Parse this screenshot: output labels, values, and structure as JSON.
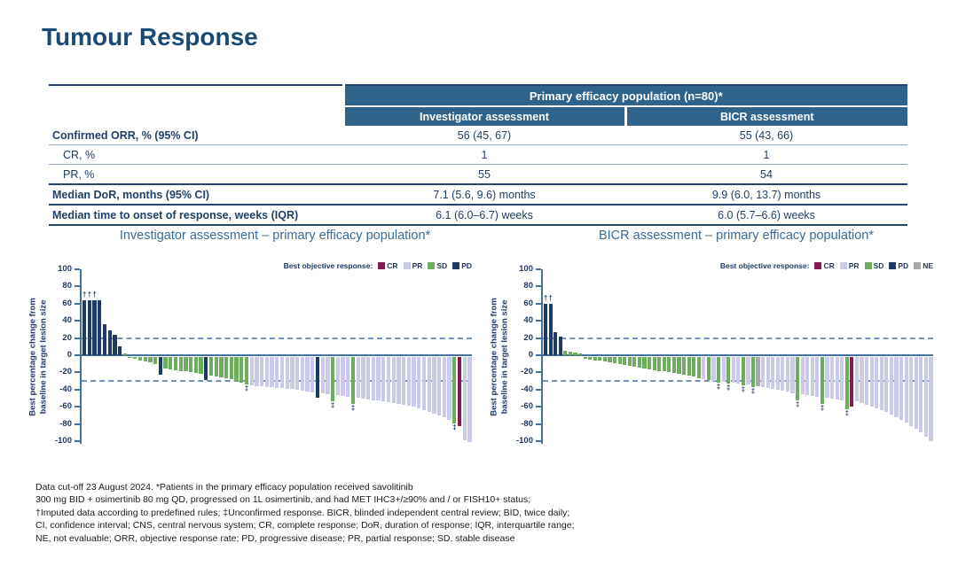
{
  "title": "Tumour Response",
  "table": {
    "col_group_header": "Primary efficacy population (n=80)*",
    "col_headers": [
      "Investigator assessment",
      "BICR assessment"
    ],
    "rows": [
      {
        "label": "Confirmed ORR, % (95% CI)",
        "values": [
          "56 (45, 67)",
          "55 (43, 66)"
        ]
      },
      {
        "label": "CR, %",
        "values": [
          "1",
          "1"
        ]
      },
      {
        "label": "PR, %",
        "values": [
          "55",
          "54"
        ]
      },
      {
        "label": "Median DoR, months (95% CI)",
        "values": [
          "7.1 (5.6, 9.6) months",
          "9.9 (6.0, 13.7) months"
        ]
      },
      {
        "label": "Median time to onset of response, weeks (IQR)",
        "values": [
          "6.1 (6.0–6.7) weeks",
          "6.0 (5.7–6.6) weeks"
        ]
      }
    ]
  },
  "chart_data": [
    {
      "type": "bar",
      "title": "Investigator assessment – primary efficacy population*",
      "ylabel": "Best percentage change from baseline in target lesion size",
      "ylabel_lines": [
        "Best percentage change from",
        "baseline in target lesion size"
      ],
      "ylim": [
        -100,
        100
      ],
      "yticks": [
        100,
        80,
        60,
        40,
        20,
        0,
        -20,
        -40,
        -60,
        -80,
        -100
      ],
      "reference_lines": [
        20,
        -30
      ],
      "legend_title": "Best objective response:",
      "legend_position": "top-right",
      "grid": false,
      "legend": [
        {
          "label": "CR",
          "color": "#871a52"
        },
        {
          "label": "PR",
          "color": "#c9cbe8"
        },
        {
          "label": "SD",
          "color": "#6fad5e"
        },
        {
          "label": "PD",
          "color": "#1f3a64"
        }
      ],
      "marker_meanings": {
        "†": "Imputed data according to predefined rules",
        "‡": "Unconfirmed response"
      },
      "bars": [
        [
          64,
          "PD",
          "†"
        ],
        [
          64,
          "PD",
          "†"
        ],
        [
          64,
          "PD",
          "†"
        ],
        [
          64,
          "PD"
        ],
        [
          36,
          "PD"
        ],
        [
          29,
          "PD"
        ],
        [
          24,
          "PD"
        ],
        [
          10,
          "PD"
        ],
        [
          2,
          "SD"
        ],
        [
          -1,
          "SD"
        ],
        [
          -2,
          "SD"
        ],
        [
          -4,
          "SD"
        ],
        [
          -5,
          "SD"
        ],
        [
          -6,
          "SD"
        ],
        [
          -8,
          "SD"
        ],
        [
          -21,
          "PD"
        ],
        [
          -13,
          "SD"
        ],
        [
          -14,
          "SD"
        ],
        [
          -15,
          "SD"
        ],
        [
          -16,
          "SD"
        ],
        [
          -17,
          "SD"
        ],
        [
          -18,
          "SD"
        ],
        [
          -19,
          "SD"
        ],
        [
          -20,
          "SD"
        ],
        [
          -27,
          "PD"
        ],
        [
          -22,
          "SD"
        ],
        [
          -23,
          "SD"
        ],
        [
          -24,
          "SD"
        ],
        [
          -25,
          "SD"
        ],
        [
          -26,
          "SD"
        ],
        [
          -28,
          "SD"
        ],
        [
          -30,
          "SD"
        ],
        [
          -32,
          "SD",
          "‡"
        ],
        [
          -33,
          "PR"
        ],
        [
          -34,
          "PR"
        ],
        [
          -34,
          "PR"
        ],
        [
          -35,
          "PR"
        ],
        [
          -35,
          "PR"
        ],
        [
          -36,
          "PR"
        ],
        [
          -36,
          "PR"
        ],
        [
          -37,
          "PR"
        ],
        [
          -37,
          "PR"
        ],
        [
          -38,
          "PR"
        ],
        [
          -39,
          "PR"
        ],
        [
          -40,
          "PR"
        ],
        [
          -41,
          "PR"
        ],
        [
          -47,
          "PD"
        ],
        [
          -42,
          "PR"
        ],
        [
          -43,
          "PR"
        ],
        [
          -52,
          "SD",
          "‡"
        ],
        [
          -44,
          "PR"
        ],
        [
          -45,
          "PR"
        ],
        [
          -46,
          "PR"
        ],
        [
          -55,
          "SD",
          "‡"
        ],
        [
          -47,
          "PR"
        ],
        [
          -48,
          "PR"
        ],
        [
          -49,
          "PR"
        ],
        [
          -50,
          "PR"
        ],
        [
          -51,
          "PR"
        ],
        [
          -52,
          "PR"
        ],
        [
          -53,
          "PR"
        ],
        [
          -54,
          "PR"
        ],
        [
          -55,
          "PR"
        ],
        [
          -56,
          "PR"
        ],
        [
          -57,
          "PR"
        ],
        [
          -58,
          "PR"
        ],
        [
          -60,
          "PR"
        ],
        [
          -62,
          "PR"
        ],
        [
          -64,
          "PR"
        ],
        [
          -66,
          "PR"
        ],
        [
          -68,
          "PR"
        ],
        [
          -70,
          "PR"
        ],
        [
          -73,
          "PR"
        ],
        [
          -77,
          "SD",
          "‡"
        ],
        [
          -80,
          "CR"
        ],
        [
          -97,
          "PR"
        ],
        [
          -99,
          "PR"
        ]
      ]
    },
    {
      "type": "bar",
      "title": "BICR assessment – primary efficacy population*",
      "ylabel": "Best percentage change from baseline in target lesion size",
      "ylabel_lines": [
        "Best percentage change from",
        "baseline in target lesion size"
      ],
      "ylim": [
        -100,
        100
      ],
      "yticks": [
        100,
        80,
        60,
        40,
        20,
        0,
        -20,
        -40,
        -60,
        -80,
        -100
      ],
      "reference_lines": [
        20,
        -30
      ],
      "legend_title": "Best objective response:",
      "legend_position": "top-right",
      "grid": false,
      "legend": [
        {
          "label": "CR",
          "color": "#871a52"
        },
        {
          "label": "PR",
          "color": "#c9cbe8"
        },
        {
          "label": "SD",
          "color": "#6fad5e"
        },
        {
          "label": "PD",
          "color": "#1f3a64"
        },
        {
          "label": "NE",
          "color": "#a8a8a8"
        }
      ],
      "marker_meanings": {
        "†": "Imputed data according to predefined rules",
        "‡": "Unconfirmed response"
      },
      "bars": [
        [
          60,
          "PD",
          "†"
        ],
        [
          60,
          "PD",
          "†"
        ],
        [
          27,
          "PD"
        ],
        [
          22,
          "PD"
        ],
        [
          5,
          "SD"
        ],
        [
          4,
          "SD"
        ],
        [
          3,
          "SD"
        ],
        [
          2,
          "SD"
        ],
        [
          -2,
          "SD"
        ],
        [
          -3,
          "SD"
        ],
        [
          -4,
          "SD"
        ],
        [
          -4,
          "SD"
        ],
        [
          -5,
          "SD"
        ],
        [
          -6,
          "SD"
        ],
        [
          -7,
          "SD"
        ],
        [
          -8,
          "SD"
        ],
        [
          -9,
          "SD"
        ],
        [
          -10,
          "SD"
        ],
        [
          -11,
          "SD"
        ],
        [
          -12,
          "SD"
        ],
        [
          -13,
          "SD"
        ],
        [
          -14,
          "SD"
        ],
        [
          -15,
          "SD"
        ],
        [
          -16,
          "SD"
        ],
        [
          -17,
          "SD"
        ],
        [
          -18,
          "SD"
        ],
        [
          -19,
          "SD"
        ],
        [
          -20,
          "SD"
        ],
        [
          -21,
          "SD"
        ],
        [
          -22,
          "SD"
        ],
        [
          -23,
          "SD"
        ],
        [
          -25,
          "SD"
        ],
        [
          -26,
          "PR"
        ],
        [
          -27,
          "SD"
        ],
        [
          -28,
          "PR"
        ],
        [
          -30,
          "SD",
          "‡"
        ],
        [
          -29,
          "PR"
        ],
        [
          -31,
          "SD",
          "‡"
        ],
        [
          -30,
          "PR"
        ],
        [
          -31,
          "PR"
        ],
        [
          -33,
          "SD",
          "‡"
        ],
        [
          -32,
          "PR"
        ],
        [
          -35,
          "SD",
          "‡"
        ],
        [
          -34,
          "NE"
        ],
        [
          -35,
          "PR"
        ],
        [
          -36,
          "PR"
        ],
        [
          -37,
          "PR"
        ],
        [
          -38,
          "PR"
        ],
        [
          -39,
          "PR"
        ],
        [
          -40,
          "PR"
        ],
        [
          -42,
          "PR"
        ],
        [
          -50,
          "SD",
          "‡"
        ],
        [
          -43,
          "PR"
        ],
        [
          -44,
          "PR"
        ],
        [
          -45,
          "PR"
        ],
        [
          -46,
          "PR"
        ],
        [
          -55,
          "SD",
          "‡"
        ],
        [
          -47,
          "PR"
        ],
        [
          -48,
          "PR"
        ],
        [
          -49,
          "PR"
        ],
        [
          -50,
          "PR"
        ],
        [
          -61,
          "SD",
          "‡"
        ],
        [
          -58,
          "CR"
        ],
        [
          -52,
          "PR"
        ],
        [
          -54,
          "PR"
        ],
        [
          -56,
          "PR"
        ],
        [
          -58,
          "PR"
        ],
        [
          -60,
          "PR"
        ],
        [
          -62,
          "PR"
        ],
        [
          -64,
          "PR"
        ],
        [
          -67,
          "PR"
        ],
        [
          -70,
          "PR"
        ],
        [
          -73,
          "PR"
        ],
        [
          -76,
          "PR"
        ],
        [
          -80,
          "PR"
        ],
        [
          -84,
          "PR"
        ],
        [
          -88,
          "PR"
        ],
        [
          -93,
          "PR"
        ],
        [
          -98,
          "PR"
        ]
      ]
    }
  ],
  "footnotes": [
    "Data cut-off 23 August 2024. *Patients in the primary efficacy population received savolitinib",
    "300 mg BID + osimertinib 80 mg QD, progressed on 1L osimertinib, and had MET IHC3+/≥90% and / or FISH10+ status;",
    "†Imputed data according to predefined rules; ‡Unconfirmed response. BICR, blinded independent central review; BID, twice daily;",
    "CI, confidence interval; CNS, central nervous system; CR, complete response; DoR, duration of response; IQR, interquartile range;",
    "NE, not evaluable; ORR, objective response rate; PD, progressive disease; PR, partial response; SD, stable disease"
  ],
  "colors": {
    "title_blue": "#1a4a73",
    "header_blue": "#30638c",
    "chart_title_blue": "#3a6b96",
    "axis_blue": "#41719c",
    "dashed_blue": "#6e94b8",
    "text_navy": "#1f3a64",
    "categories": {
      "CR": "#871a52",
      "PR": "#c9cbe8",
      "SD": "#6fad5e",
      "PD": "#1f3a64",
      "NE": "#a8a8a8"
    }
  }
}
